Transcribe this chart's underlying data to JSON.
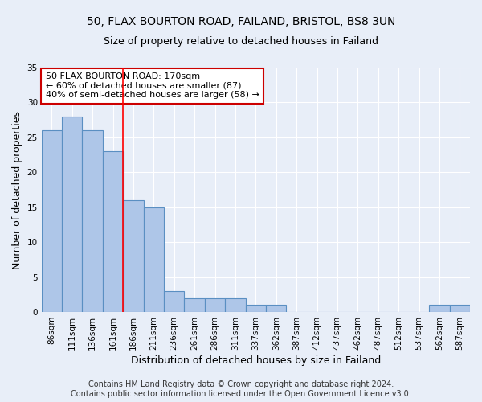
{
  "title1": "50, FLAX BOURTON ROAD, FAILAND, BRISTOL, BS8 3UN",
  "title2": "Size of property relative to detached houses in Failand",
  "xlabel": "Distribution of detached houses by size in Failand",
  "ylabel": "Number of detached properties",
  "categories": [
    "86sqm",
    "111sqm",
    "136sqm",
    "161sqm",
    "186sqm",
    "211sqm",
    "236sqm",
    "261sqm",
    "286sqm",
    "311sqm",
    "337sqm",
    "362sqm",
    "387sqm",
    "412sqm",
    "437sqm",
    "462sqm",
    "487sqm",
    "512sqm",
    "537sqm",
    "562sqm",
    "587sqm"
  ],
  "values": [
    26,
    28,
    26,
    23,
    16,
    15,
    3,
    2,
    2,
    2,
    1,
    1,
    0,
    0,
    0,
    0,
    0,
    0,
    0,
    1,
    1
  ],
  "bar_color": "#aec6e8",
  "bar_edge_color": "#5a8fc2",
  "red_line_x": 3.5,
  "annotation_text": "50 FLAX BOURTON ROAD: 170sqm\n← 60% of detached houses are smaller (87)\n40% of semi-detached houses are larger (58) →",
  "annotation_box_color": "#ffffff",
  "annotation_box_edge_color": "#cc0000",
  "ylim": [
    0,
    35
  ],
  "yticks": [
    0,
    5,
    10,
    15,
    20,
    25,
    30,
    35
  ],
  "bg_color": "#e8eef8",
  "grid_color": "#ffffff",
  "footer_text": "Contains HM Land Registry data © Crown copyright and database right 2024.\nContains public sector information licensed under the Open Government Licence v3.0.",
  "title_fontsize": 10,
  "subtitle_fontsize": 9,
  "xlabel_fontsize": 9,
  "ylabel_fontsize": 9,
  "tick_fontsize": 7.5,
  "annotation_fontsize": 8,
  "footer_fontsize": 7
}
